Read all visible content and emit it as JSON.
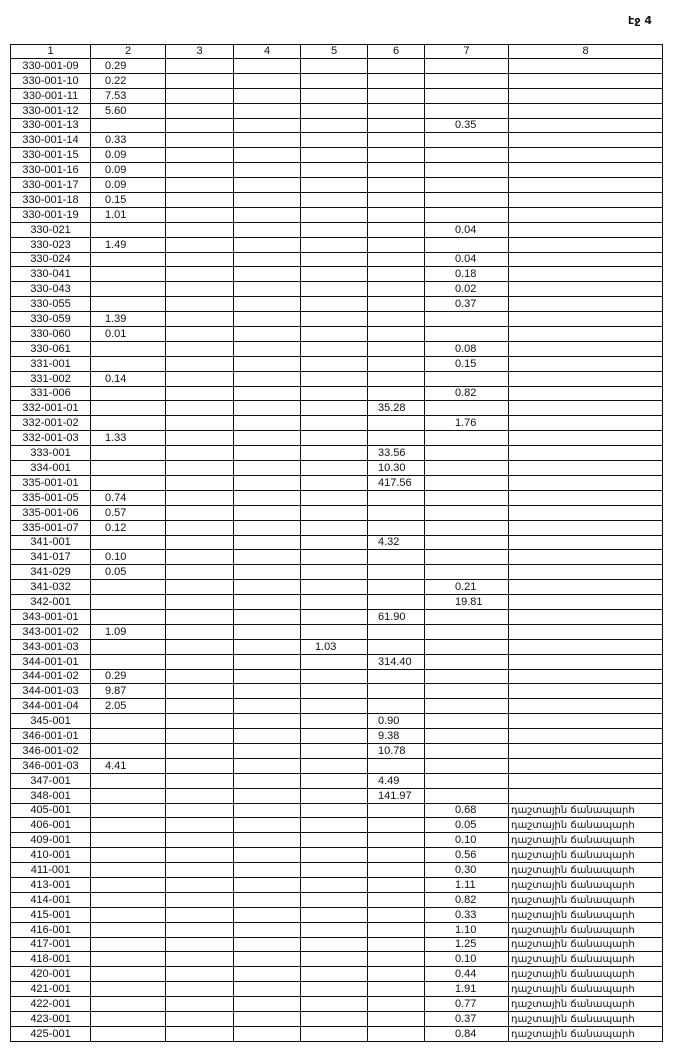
{
  "page_label": "էջ 4",
  "headers": [
    "1",
    "2",
    "3",
    "4",
    "5",
    "6",
    "7",
    "8"
  ],
  "rows": [
    [
      "330-001-09",
      "0.29",
      "",
      "",
      "",
      "",
      "",
      ""
    ],
    [
      "330-001-10",
      "0.22",
      "",
      "",
      "",
      "",
      "",
      ""
    ],
    [
      "330-001-11",
      "7.53",
      "",
      "",
      "",
      "",
      "",
      ""
    ],
    [
      "330-001-12",
      "5.60",
      "",
      "",
      "",
      "",
      "",
      ""
    ],
    [
      "330-001-13",
      "",
      "",
      "",
      "",
      "",
      "0.35",
      ""
    ],
    [
      "330-001-14",
      "0.33",
      "",
      "",
      "",
      "",
      "",
      ""
    ],
    [
      "330-001-15",
      "0.09",
      "",
      "",
      "",
      "",
      "",
      ""
    ],
    [
      "330-001-16",
      "0.09",
      "",
      "",
      "",
      "",
      "",
      ""
    ],
    [
      "330-001-17",
      "0.09",
      "",
      "",
      "",
      "",
      "",
      ""
    ],
    [
      "330-001-18",
      "0.15",
      "",
      "",
      "",
      "",
      "",
      ""
    ],
    [
      "330-001-19",
      "1.01",
      "",
      "",
      "",
      "",
      "",
      ""
    ],
    [
      "330-021",
      "",
      "",
      "",
      "",
      "",
      "0.04",
      ""
    ],
    [
      "330-023",
      "1.49",
      "",
      "",
      "",
      "",
      "",
      ""
    ],
    [
      "330-024",
      "",
      "",
      "",
      "",
      "",
      "0.04",
      ""
    ],
    [
      "330-041",
      "",
      "",
      "",
      "",
      "",
      "0.18",
      ""
    ],
    [
      "330-043",
      "",
      "",
      "",
      "",
      "",
      "0.02",
      ""
    ],
    [
      "330-055",
      "",
      "",
      "",
      "",
      "",
      "0.37",
      ""
    ],
    [
      "330-059",
      "1.39",
      "",
      "",
      "",
      "",
      "",
      ""
    ],
    [
      "330-060",
      "0.01",
      "",
      "",
      "",
      "",
      "",
      ""
    ],
    [
      "330-061",
      "",
      "",
      "",
      "",
      "",
      "0.08",
      ""
    ],
    [
      "331-001",
      "",
      "",
      "",
      "",
      "",
      "0.15",
      ""
    ],
    [
      "331-002",
      "0.14",
      "",
      "",
      "",
      "",
      "",
      ""
    ],
    [
      "331-006",
      "",
      "",
      "",
      "",
      "",
      "0.82",
      ""
    ],
    [
      "332-001-01",
      "",
      "",
      "",
      "",
      "35.28",
      "",
      ""
    ],
    [
      "332-001-02",
      "",
      "",
      "",
      "",
      "",
      "1.76",
      ""
    ],
    [
      "332-001-03",
      "1.33",
      "",
      "",
      "",
      "",
      "",
      ""
    ],
    [
      "333-001",
      "",
      "",
      "",
      "",
      "33.56",
      "",
      ""
    ],
    [
      "334-001",
      "",
      "",
      "",
      "",
      "10.30",
      "",
      ""
    ],
    [
      "335-001-01",
      "",
      "",
      "",
      "",
      "417.56",
      "",
      ""
    ],
    [
      "335-001-05",
      "0.74",
      "",
      "",
      "",
      "",
      "",
      ""
    ],
    [
      "335-001-06",
      "0.57",
      "",
      "",
      "",
      "",
      "",
      ""
    ],
    [
      "335-001-07",
      "0.12",
      "",
      "",
      "",
      "",
      "",
      ""
    ],
    [
      "341-001",
      "",
      "",
      "",
      "",
      "4.32",
      "",
      ""
    ],
    [
      "341-017",
      "0.10",
      "",
      "",
      "",
      "",
      "",
      ""
    ],
    [
      "341-029",
      "0.05",
      "",
      "",
      "",
      "",
      "",
      ""
    ],
    [
      "341-032",
      "",
      "",
      "",
      "",
      "",
      "0.21",
      ""
    ],
    [
      "342-001",
      "",
      "",
      "",
      "",
      "",
      "19.81",
      ""
    ],
    [
      "343-001-01",
      "",
      "",
      "",
      "",
      "61.90",
      "",
      ""
    ],
    [
      "343-001-02",
      "1.09",
      "",
      "",
      "",
      "",
      "",
      ""
    ],
    [
      "343-001-03",
      "",
      "",
      "",
      "1.03",
      "",
      "",
      ""
    ],
    [
      "344-001-01",
      "",
      "",
      "",
      "",
      "314.40",
      "",
      ""
    ],
    [
      "344-001-02",
      "0.29",
      "",
      "",
      "",
      "",
      "",
      ""
    ],
    [
      "344-001-03",
      "9.87",
      "",
      "",
      "",
      "",
      "",
      ""
    ],
    [
      "344-001-04",
      "2.05",
      "",
      "",
      "",
      "",
      "",
      ""
    ],
    [
      "345-001",
      "",
      "",
      "",
      "",
      "0.90",
      "",
      ""
    ],
    [
      "346-001-01",
      "",
      "",
      "",
      "",
      "9.38",
      "",
      ""
    ],
    [
      "346-001-02",
      "",
      "",
      "",
      "",
      "10.78",
      "",
      ""
    ],
    [
      "346-001-03",
      "4.41",
      "",
      "",
      "",
      "",
      "",
      ""
    ],
    [
      "347-001",
      "",
      "",
      "",
      "",
      "4.49",
      "",
      ""
    ],
    [
      "348-001",
      "",
      "",
      "",
      "",
      "141.97",
      "",
      ""
    ],
    [
      "405-001",
      "",
      "",
      "",
      "",
      "",
      "0.68",
      "դաշտային ճանապարհ"
    ],
    [
      "406-001",
      "",
      "",
      "",
      "",
      "",
      "0.05",
      "դաշտային ճանապարհ"
    ],
    [
      "409-001",
      "",
      "",
      "",
      "",
      "",
      "0.10",
      "դաշտային ճանապարհ"
    ],
    [
      "410-001",
      "",
      "",
      "",
      "",
      "",
      "0.56",
      "դաշտային ճանապարհ"
    ],
    [
      "411-001",
      "",
      "",
      "",
      "",
      "",
      "0.30",
      "դաշտային ճանապարհ"
    ],
    [
      "413-001",
      "",
      "",
      "",
      "",
      "",
      "1.11",
      "դաշտային ճանապարհ"
    ],
    [
      "414-001",
      "",
      "",
      "",
      "",
      "",
      "0.82",
      "դաշտային ճանապարհ"
    ],
    [
      "415-001",
      "",
      "",
      "",
      "",
      "",
      "0.33",
      "դաշտային ճանապարհ"
    ],
    [
      "416-001",
      "",
      "",
      "",
      "",
      "",
      "1.10",
      "դաշտային ճանապարհ"
    ],
    [
      "417-001",
      "",
      "",
      "",
      "",
      "",
      "1.25",
      "դաշտային ճանապարհ"
    ],
    [
      "418-001",
      "",
      "",
      "",
      "",
      "",
      "0.10",
      "դաշտային ճանապարհ"
    ],
    [
      "420-001",
      "",
      "",
      "",
      "",
      "",
      "0.44",
      "դաշտային ճանապարհ"
    ],
    [
      "421-001",
      "",
      "",
      "",
      "",
      "",
      "1.91",
      "դաշտային ճանապարհ"
    ],
    [
      "422-001",
      "",
      "",
      "",
      "",
      "",
      "0.77",
      "դաշտային ճանապարհ"
    ],
    [
      "423-001",
      "",
      "",
      "",
      "",
      "",
      "0.37",
      "դաշտային ճանապարհ"
    ],
    [
      "425-001",
      "",
      "",
      "",
      "",
      "",
      "0.84",
      "դաշտային ճանապարհ"
    ]
  ]
}
